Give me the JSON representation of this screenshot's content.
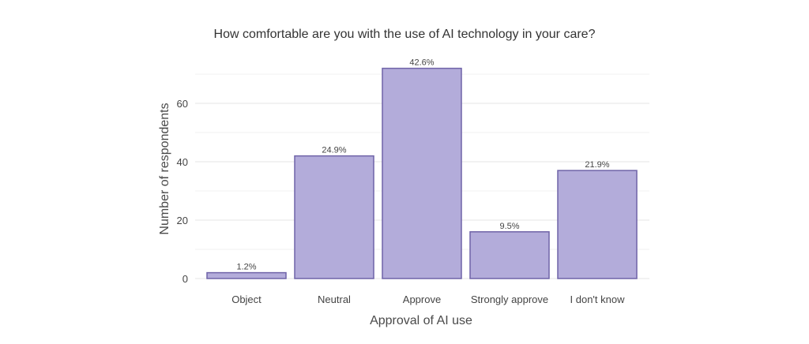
{
  "chart_data": {
    "type": "bar",
    "title": "How comfortable are you with the use of AI technology in your care?",
    "xlabel": "Approval of AI use",
    "ylabel": "Number of respondents",
    "categories": [
      "Object",
      "Neutral",
      "Approve",
      "Strongly approve",
      "I don't know"
    ],
    "values": [
      2,
      42,
      72,
      16,
      37
    ],
    "data_labels": [
      "1.2%",
      "24.9%",
      "42.6%",
      "9.5%",
      "21.9%"
    ],
    "yticks": [
      0,
      20,
      40,
      60
    ],
    "ytick_labels": [
      "0",
      "20",
      "40",
      "60"
    ],
    "ylim": [
      0,
      72
    ],
    "grid": true,
    "legend": "none",
    "colors": {
      "bar_fill": "#b3acda",
      "bar_stroke": "#6f63a8",
      "grid": "#e6e6e6"
    }
  }
}
